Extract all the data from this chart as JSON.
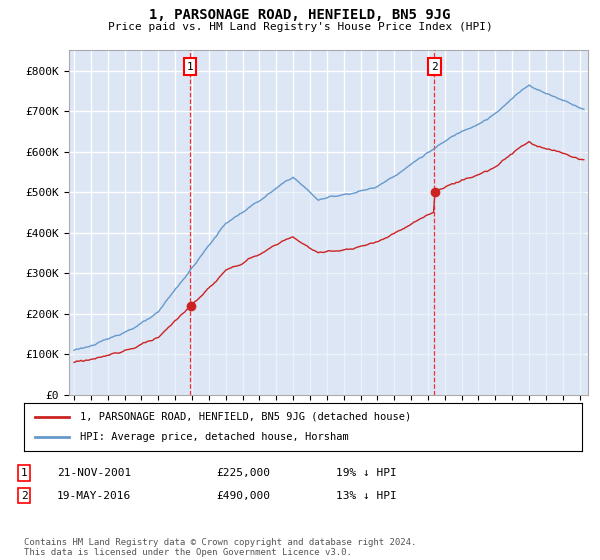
{
  "title": "1, PARSONAGE ROAD, HENFIELD, BN5 9JG",
  "subtitle": "Price paid vs. HM Land Registry's House Price Index (HPI)",
  "background_color": "#ffffff",
  "plot_bg_color": "#dce6f5",
  "grid_color": "#ffffff",
  "hpi_color": "#6699cc",
  "hpi_fill_color": "#dce6f5",
  "price_color": "#cc2222",
  "ylim": [
    0,
    850000
  ],
  "yticks": [
    0,
    100000,
    200000,
    300000,
    400000,
    500000,
    600000,
    700000,
    800000
  ],
  "ytick_labels": [
    "£0",
    "£100K",
    "£200K",
    "£300K",
    "£400K",
    "£500K",
    "£600K",
    "£700K",
    "£800K"
  ],
  "sale1_x": 2001.88,
  "sale1_price": 225000,
  "sale1_date": "21-NOV-2001",
  "sale1_note": "19% ↓ HPI",
  "sale2_x": 2016.38,
  "sale2_price": 490000,
  "sale2_date": "19-MAY-2016",
  "sale2_note": "13% ↓ HPI",
  "legend_label1": "1, PARSONAGE ROAD, HENFIELD, BN5 9JG (detached house)",
  "legend_label2": "HPI: Average price, detached house, Horsham",
  "footer": "Contains HM Land Registry data © Crown copyright and database right 2024.\nThis data is licensed under the Open Government Licence v3.0.",
  "xlim_left": 1994.7,
  "xlim_right": 2025.5
}
